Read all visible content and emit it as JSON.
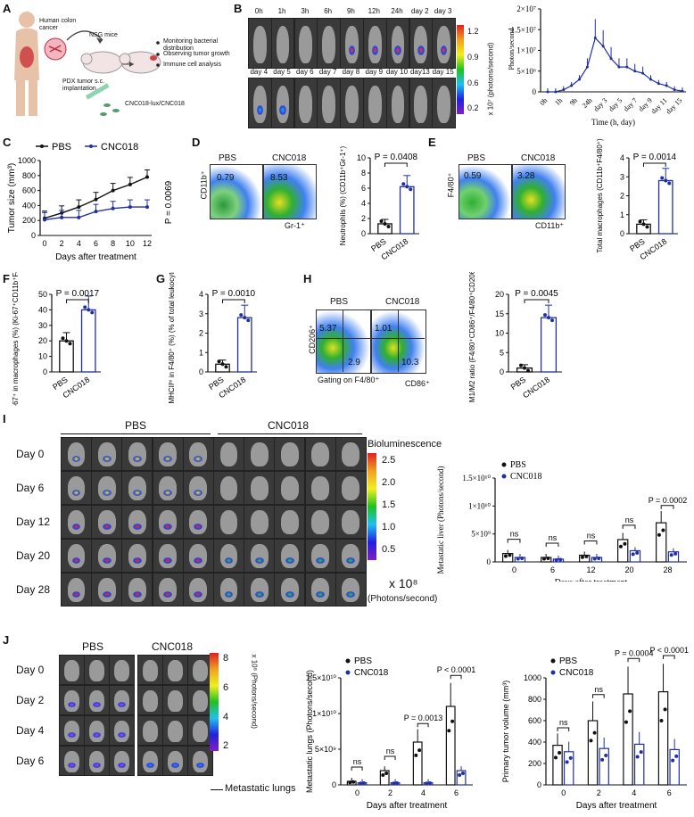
{
  "panels": {
    "A": {
      "label": "A",
      "texts": [
        "Human colon cancer",
        "NSG mice",
        "PDX tumor s.c. implantation",
        "CNC018-lux/CNC018",
        "Monitoring bacterial distribution",
        "Observing tumor growth",
        "Immune cell analysis"
      ]
    },
    "B": {
      "label": "B",
      "times_row1": [
        "0h",
        "1h",
        "3h",
        "6h",
        "9h",
        "12h",
        "24h",
        "day 2",
        "day 3"
      ],
      "times_row2": [
        "day 4",
        "day 5",
        "day 6",
        "day 7",
        "day 8",
        "day 9",
        "day 10",
        "day13",
        "day 15"
      ],
      "colorbar_ticks": [
        "1.2",
        "0.9",
        "0.6",
        "0.2"
      ],
      "colorbar_unit": "x 10⁷ (photons/second)",
      "chart_ylabel": "Photon/second",
      "chart_xlabel": "Time (h, day)",
      "chart_xticks": [
        "0h",
        "1h",
        "9h",
        "24h",
        "day 3",
        "day 5",
        "day 7",
        "day 9",
        "day 11",
        "day 15"
      ],
      "chart_yticks": [
        "0",
        "5×10⁶",
        "1×10⁷",
        "1.5×10⁷",
        "2×10⁷"
      ]
    },
    "C": {
      "label": "C",
      "legend": [
        "PBS",
        "CNC018"
      ],
      "ylabel": "Tumor size (mm³)",
      "xlabel": "Days after treatment",
      "pvalue": "P = 0.0069",
      "xticks": [
        "0",
        "2",
        "4",
        "6",
        "8",
        "10",
        "12"
      ],
      "yticks": [
        "0",
        "200",
        "400",
        "600",
        "800",
        "1000"
      ]
    },
    "D": {
      "label": "D",
      "groups": [
        "PBS",
        "CNC018"
      ],
      "values": [
        "0.79",
        "8.53"
      ],
      "ylabel_flow": "CD11b⁺",
      "xlabel_flow": "Gr-1⁺",
      "bar_ylabel": "Neutrophils (%) (CD11b⁺Gr-1⁺)",
      "pvalue": "P = 0.0408",
      "yticks": [
        "0",
        "2",
        "4",
        "6",
        "8",
        "10"
      ]
    },
    "E": {
      "label": "E",
      "groups": [
        "PBS",
        "CNC018"
      ],
      "values": [
        "0.59",
        "3.28"
      ],
      "ylabel_flow": "F4/80⁺",
      "xlabel_flow": "CD11b⁺",
      "bar_ylabel": "Total macrophages (CD11b⁺F4/80⁺)",
      "pvalue": "P = 0.0014",
      "yticks": [
        "0",
        "1",
        "2",
        "3",
        "4"
      ]
    },
    "F": {
      "label": "F",
      "ylabel": "Ki-67⁺ in macrophages (%) (Ki-67⁺CD11b⁺F4/80⁺)",
      "pvalue": "P = 0.0017",
      "xticks": [
        "PBS",
        "CNC018"
      ],
      "yticks": [
        "0",
        "10",
        "20",
        "30",
        "40",
        "50"
      ]
    },
    "G": {
      "label": "G",
      "ylabel": "MHCIIʰⁱ in F4/80⁺ (%) (% of total leukocytes)",
      "pvalue": "P = 0.0010",
      "xticks": [
        "PBS",
        "CNC018"
      ],
      "yticks": [
        "0",
        "1",
        "2",
        "3",
        "4"
      ]
    },
    "H": {
      "label": "H",
      "groups": [
        "PBS",
        "CNC018"
      ],
      "ylabel_flow": "CD206⁺",
      "xlabel_flow": "CD86⁺",
      "gating": "Gating on F4/80⁺",
      "q_pbs": [
        "5.37",
        "2.9"
      ],
      "q_cnc": [
        "1.01",
        "10.3"
      ],
      "bar_ylabel": "M1/M2 ratio (F4/80⁺CD86⁺/F4/80⁺CD206⁺)",
      "pvalue": "P = 0.0045",
      "yticks": [
        "0",
        "5",
        "10",
        "15",
        "20"
      ]
    },
    "I": {
      "label": "I",
      "groups": [
        "PBS",
        "CNC018"
      ],
      "days": [
        "Day 0",
        "Day 6",
        "Day 12",
        "Day 20",
        "Day 28"
      ],
      "colorbar_title": "Bioluminescence",
      "colorbar_ticks": [
        "2.5",
        "2.0",
        "1.5",
        "1.0",
        "0.5"
      ],
      "colorbar_unit": "x 10⁸",
      "colorbar_unit2": "(Photons/second)",
      "chart_ylabel": "Metastatic liver (Photons/second)",
      "chart_xlabel": "Days after treatment",
      "legend": [
        "PBS",
        "CNC018"
      ],
      "pvalue": "P = 0.0002",
      "ns": [
        "ns",
        "ns",
        "ns",
        "ns"
      ],
      "xticks": [
        "0",
        "6",
        "12",
        "20",
        "28"
      ],
      "yticks": [
        "0",
        "5×10⁹",
        "1×10¹⁰",
        "1.5×10¹⁰"
      ]
    },
    "J": {
      "label": "J",
      "groups": [
        "PBS",
        "CNC018"
      ],
      "days": [
        "Day 0",
        "Day 2",
        "Day 4",
        "Day 6"
      ],
      "colorbar_ticks": [
        "8",
        "6",
        "4",
        "2"
      ],
      "colorbar_unit": "x 10⁸ (Photons/second)",
      "lungs_label": "Metastatic lungs",
      "chart1_ylabel": "Metastatic lungs (Photons/second)",
      "chart1_xlabel": "Days after treatment",
      "chart1_legend": [
        "PBS",
        "CNC018"
      ],
      "chart1_pvalues": [
        "ns",
        "ns",
        "P = 0.0013",
        "P < 0.0001"
      ],
      "chart1_xticks": [
        "0",
        "2",
        "4",
        "6"
      ],
      "chart1_yticks": [
        "0",
        "5×10⁹",
        "1×10¹⁰",
        "1.5×10¹⁰"
      ],
      "chart2_ylabel": "Primary tumor volume (mm³)",
      "chart2_xlabel": "Days after treatment",
      "chart2_legend": [
        "PBS",
        "CNC018"
      ],
      "chart2_pvalues": [
        "ns",
        "ns",
        "P = 0.0004",
        "P < 0.0001"
      ],
      "chart2_xticks": [
        "0",
        "2",
        "4",
        "6"
      ],
      "chart2_yticks": [
        "0",
        "200",
        "400",
        "600",
        "800",
        "1000"
      ]
    }
  },
  "chart_data": [
    {
      "type": "line",
      "panel": "B",
      "x": [
        "0h",
        "1h",
        "3h",
        "6h",
        "9h",
        "12h",
        "24h",
        "day 2",
        "day 3",
        "day 4",
        "day 5",
        "day 6",
        "day 7",
        "day 8",
        "day 9",
        "day 10",
        "day13",
        "day 15"
      ],
      "series": [
        {
          "values": [
            0,
            0,
            500000.0,
            1500000.0,
            3000000.0,
            6000000.0,
            13000000.0,
            11000000.0,
            8000000.0,
            6000000.0,
            6000000.0,
            5000000.0,
            4500000.0,
            3000000.0,
            2000000.0,
            1500000.0,
            500000.0,
            200000.0
          ]
        }
      ],
      "ylim": [
        0,
        20000000.0
      ]
    },
    {
      "type": "line",
      "panel": "C",
      "x": [
        0,
        2,
        4,
        6,
        8,
        10,
        12
      ],
      "series": [
        {
          "name": "PBS",
          "values": [
            230,
            300,
            380,
            480,
            600,
            680,
            780
          ]
        },
        {
          "name": "CNC018",
          "values": [
            210,
            240,
            240,
            320,
            360,
            380,
            380
          ]
        }
      ],
      "ylim": [
        0,
        1000
      ]
    },
    {
      "type": "bar",
      "panel": "D",
      "categories": [
        "PBS",
        "CNC018"
      ],
      "values": [
        1.3,
        6.2
      ],
      "ylim": [
        0,
        10
      ]
    },
    {
      "type": "bar",
      "panel": "E",
      "categories": [
        "PBS",
        "CNC018"
      ],
      "values": [
        0.5,
        2.8
      ],
      "ylim": [
        0,
        4
      ]
    },
    {
      "type": "bar",
      "panel": "F",
      "categories": [
        "PBS",
        "CNC018"
      ],
      "values": [
        20,
        40
      ],
      "ylim": [
        0,
        50
      ]
    },
    {
      "type": "bar",
      "panel": "G",
      "categories": [
        "PBS",
        "CNC018"
      ],
      "values": [
        0.4,
        2.8
      ],
      "ylim": [
        0,
        4
      ]
    },
    {
      "type": "bar",
      "panel": "H",
      "categories": [
        "PBS",
        "CNC018"
      ],
      "values": [
        1,
        14
      ],
      "ylim": [
        0,
        20
      ]
    },
    {
      "type": "bar",
      "panel": "I",
      "categories": [
        "0",
        "6",
        "12",
        "20",
        "28"
      ],
      "series": [
        {
          "name": "PBS",
          "values": [
            1500000000.0,
            800000000.0,
            1200000000.0,
            4000000000.0,
            7000000000.0
          ]
        },
        {
          "name": "CNC018",
          "values": [
            800000000.0,
            500000000.0,
            800000000.0,
            2000000000.0,
            1800000000.0
          ]
        }
      ],
      "ylim": [
        0,
        15000000000.0
      ]
    },
    {
      "type": "bar",
      "panel": "J1",
      "categories": [
        "0",
        "2",
        "4",
        "6"
      ],
      "series": [
        {
          "name": "PBS",
          "values": [
            500000000.0,
            2000000000.0,
            6000000000.0,
            11000000000.0
          ]
        },
        {
          "name": "CNC018",
          "values": [
            300000000.0,
            300000000.0,
            300000000.0,
            2000000000.0
          ]
        }
      ],
      "ylim": [
        0,
        15000000000.0
      ]
    },
    {
      "type": "bar",
      "panel": "J2",
      "categories": [
        "0",
        "2",
        "4",
        "6"
      ],
      "series": [
        {
          "name": "PBS",
          "values": [
            370,
            600,
            850,
            870
          ]
        },
        {
          "name": "CNC018",
          "values": [
            310,
            340,
            380,
            330
          ]
        }
      ],
      "ylim": [
        0,
        1000
      ]
    }
  ]
}
